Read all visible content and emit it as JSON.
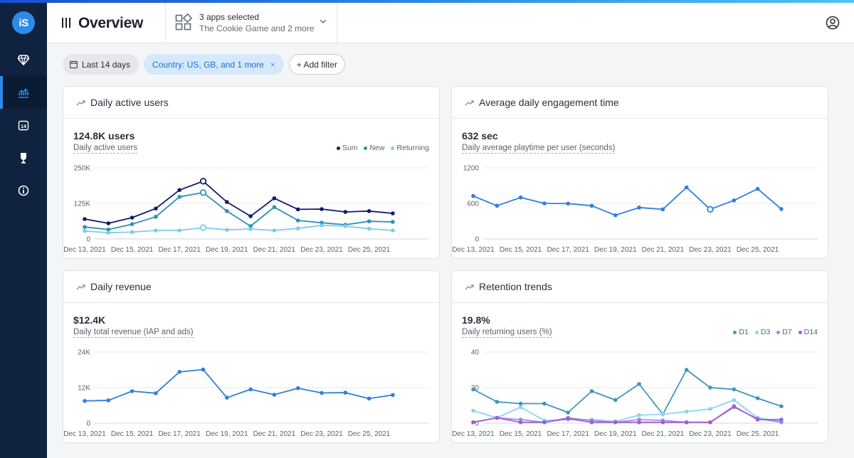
{
  "sidebar": {
    "logo_text": "iS",
    "items": [
      {
        "icon": "diamond-icon"
      },
      {
        "icon": "analytics-icon",
        "active": true
      },
      {
        "icon": "calendar-14-icon",
        "text": "14"
      },
      {
        "icon": "award-icon"
      },
      {
        "icon": "info-icon"
      }
    ]
  },
  "header": {
    "title": "Overview",
    "app_select": {
      "line1": "3 apps selected",
      "line2": "The Cookie Game and 2 more"
    }
  },
  "filters": {
    "date": "Last 14 days",
    "country": "Country: US, GB, and 1 more",
    "remove_icon": "×",
    "add": "+ Add filter"
  },
  "colors": {
    "accent": "#2d8be8",
    "sum": "#0f1a6b",
    "new": "#2e8fb5",
    "returning": "#7fcbee",
    "single": "#2f7fde",
    "d1": "#3d97bd",
    "d3": "#8ed3f2",
    "d7": "#9b8fe0",
    "d14": "#a25ad6"
  },
  "cards": [
    {
      "title": "Daily active users",
      "value": "124.8K users",
      "label": "Daily active users",
      "chart_data": {
        "type": "line",
        "x": [
          "Dec 13, 2021",
          "Dec 14, 2021",
          "Dec 15, 2021",
          "Dec 16, 2021",
          "Dec 17, 2021",
          "Dec 18, 2021",
          "Dec 19, 2021",
          "Dec 20, 2021",
          "Dec 21, 2021",
          "Dec 22, 2021",
          "Dec 23, 2021",
          "Dec 24, 2021",
          "Dec 25, 2021",
          "Dec 26, 2021"
        ],
        "x_tick_labels": [
          "Dec 13, 2021",
          "Dec 15, 2021",
          "Dec 17, 2021",
          "Dec 19, 2021",
          "Dec 21, 2021",
          "Dec 23, 2021",
          "Dec 25, 2021"
        ],
        "y_ticks": [
          "0",
          "125K",
          "250K"
        ],
        "ylim": [
          0,
          250000
        ],
        "legend_position": "top-right",
        "highlight_index": 5,
        "series": [
          {
            "name": "Sum",
            "color_key": "sum",
            "values": [
              70000,
              55000,
              75000,
              107000,
              172000,
              203000,
              130000,
              80000,
              143000,
              104000,
              105000,
              95000,
              98000,
              90000
            ]
          },
          {
            "name": "New",
            "color_key": "new",
            "values": [
              42000,
              33000,
              52000,
              78000,
              148000,
              163000,
              98000,
              45000,
              112000,
              65000,
              57000,
              50000,
              62000,
              60000
            ]
          },
          {
            "name": "Returning",
            "color_key": "returning",
            "values": [
              28000,
              22000,
              24000,
              30000,
              30000,
              40000,
              32000,
              35000,
              30000,
              37000,
              48000,
              45000,
              36000,
              30000
            ]
          }
        ]
      }
    },
    {
      "title": "Average daily engagement time",
      "value": "632 sec",
      "label": "Daily average playtime per user (seconds)",
      "chart_data": {
        "type": "line",
        "x": [
          "Dec 13, 2021",
          "Dec 14, 2021",
          "Dec 15, 2021",
          "Dec 16, 2021",
          "Dec 17, 2021",
          "Dec 18, 2021",
          "Dec 19, 2021",
          "Dec 20, 2021",
          "Dec 21, 2021",
          "Dec 22, 2021",
          "Dec 23, 2021",
          "Dec 24, 2021",
          "Dec 25, 2021",
          "Dec 26, 2021"
        ],
        "x_tick_labels": [
          "Dec 13, 2021",
          "Dec 15, 2021",
          "Dec 17, 2021",
          "Dec 19, 2021",
          "Dec 21, 2021",
          "Dec 23, 2021",
          "Dec 25, 2021"
        ],
        "y_ticks": [
          "0",
          "600",
          "1200"
        ],
        "ylim": [
          0,
          1200
        ],
        "highlight_index": 10,
        "series": [
          {
            "color_key": "single",
            "values": [
              725,
              560,
              700,
              600,
              597,
              560,
              400,
              530,
              500,
              870,
              500,
              650,
              845,
              505
            ]
          }
        ]
      }
    },
    {
      "title": "Daily revenue",
      "value": "$12.4K",
      "label": "Daily total revenue (IAP and ads)",
      "chart_data": {
        "type": "line",
        "x": [
          "Dec 13, 2021",
          "Dec 14, 2021",
          "Dec 15, 2021",
          "Dec 16, 2021",
          "Dec 17, 2021",
          "Dec 18, 2021",
          "Dec 19, 2021",
          "Dec 20, 2021",
          "Dec 21, 2021",
          "Dec 22, 2021",
          "Dec 23, 2021",
          "Dec 24, 2021",
          "Dec 25, 2021",
          "Dec 26, 2021"
        ],
        "x_tick_labels": [
          "Dec 13, 2021",
          "Dec 15, 2021",
          "Dec 17, 2021",
          "Dec 19, 2021",
          "Dec 21, 2021",
          "Dec 23, 2021",
          "Dec 25, 2021"
        ],
        "y_ticks": [
          "0",
          "12K",
          "24K"
        ],
        "ylim": [
          0,
          24000
        ],
        "series": [
          {
            "color_key": "single",
            "values": [
              7500,
              7700,
              10800,
              10100,
              17300,
              18100,
              8600,
              11400,
              9600,
              11800,
              10200,
              10300,
              8300,
              9500
            ]
          }
        ]
      }
    },
    {
      "title": "Retention trends",
      "value": "19.8%",
      "label": "Daily returning users (%)",
      "chart_data": {
        "type": "line",
        "x": [
          "Dec 13, 2021",
          "Dec 14, 2021",
          "Dec 15, 2021",
          "Dec 16, 2021",
          "Dec 17, 2021",
          "Dec 18, 2021",
          "Dec 19, 2021",
          "Dec 20, 2021",
          "Dec 21, 2021",
          "Dec 22, 2021",
          "Dec 23, 2021",
          "Dec 24, 2021",
          "Dec 25, 2021",
          "Dec 26, 2021"
        ],
        "x_tick_labels": [
          "Dec 13, 2021",
          "Dec 15, 2021",
          "Dec 17, 2021",
          "Dec 19, 2021",
          "Dec 21, 2021",
          "Dec 23, 2021",
          "Dec 25, 2021"
        ],
        "y_ticks": [
          "0",
          "20",
          "40"
        ],
        "ylim": [
          0,
          40
        ],
        "legend_position": "top-right",
        "series": [
          {
            "name": "D1",
            "color_key": "d1",
            "values": [
              19,
              12,
              11,
              11,
              6,
              18,
              13,
              22,
              5,
              30,
              20,
              19,
              14,
              9.5
            ]
          },
          {
            "name": "D3",
            "color_key": "d3",
            "values": [
              7,
              3,
              9,
              1.5,
              2,
              2,
              1,
              4.5,
              5,
              6.5,
              8,
              13,
              3,
              1
            ]
          },
          {
            "name": "D7",
            "color_key": "d7",
            "values": [
              0.5,
              3,
              2,
              0.5,
              3,
              1.5,
              0.5,
              2,
              1.5,
              0.5,
              0.5,
              9,
              2.5,
              0.5
            ]
          },
          {
            "name": "D14",
            "color_key": "d14",
            "values": [
              0.5,
              3,
              0.5,
              0.5,
              2.5,
              0.5,
              0.5,
              0.5,
              0.5,
              0.5,
              0.5,
              9.5,
              2,
              2
            ]
          }
        ]
      }
    }
  ]
}
